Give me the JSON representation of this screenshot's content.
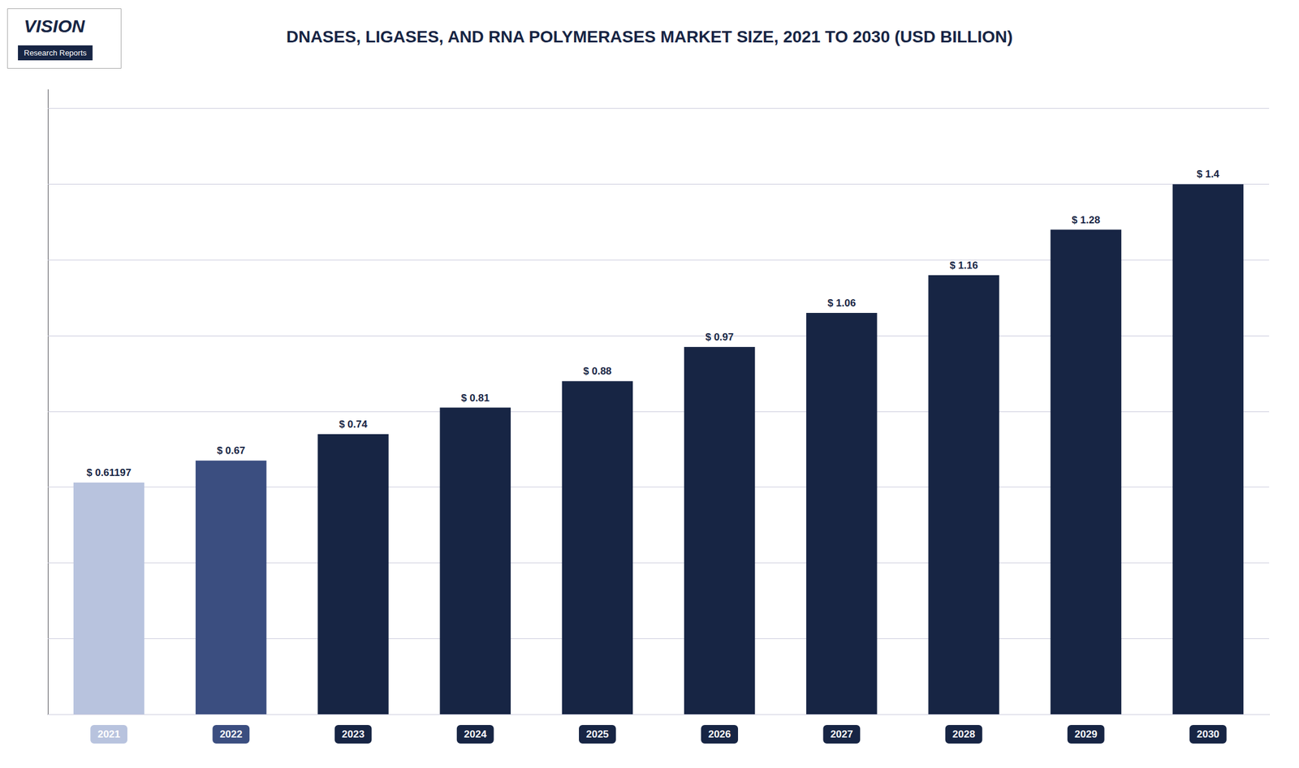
{
  "chart_data": {
    "type": "bar",
    "title": "DNASES, LIGASES, AND RNA POLYMERASES MARKET SIZE, 2021 TO 2030 (USD BILLION)",
    "annotations": [
      "VISION",
      "Research Reports"
    ],
    "categories": [
      "2021",
      "2022",
      "2023",
      "2024",
      "2025",
      "2026",
      "2027",
      "2028",
      "2029",
      "2030"
    ],
    "values": [
      0.61197,
      0.67,
      0.74,
      0.81,
      0.88,
      0.97,
      1.06,
      1.16,
      1.28,
      1.4
    ],
    "value_labels": [
      "$ 0.61197",
      "$ 0.67",
      "$ 0.74",
      "$ 0.81",
      "$ 0.88",
      "$ 0.97",
      "$ 1.06",
      "$ 1.16",
      "$ 1.28",
      "$ 1.4"
    ],
    "colors": [
      "#b8c3de",
      "#3b4e80",
      "#172544",
      "#172544",
      "#172544",
      "#172544",
      "#172544",
      "#172544",
      "#172544",
      "#172544"
    ],
    "color": "#172544",
    "ylim": [
      0,
      1.65
    ],
    "yticks": [
      0,
      0.2,
      0.4,
      0.6,
      0.8,
      1.0,
      1.2,
      1.4,
      1.6
    ],
    "grid": true,
    "data_labels": true,
    "tick_labels": "x"
  }
}
